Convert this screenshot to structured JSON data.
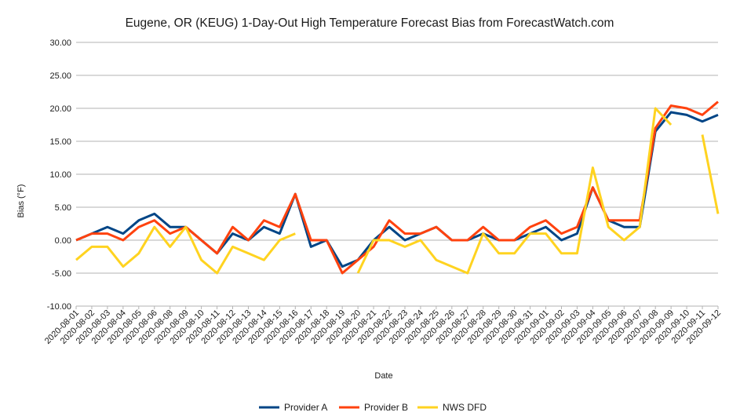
{
  "chart_data": {
    "type": "line",
    "title": "Eugene, OR (KEUG) 1-Day-Out High Temperature Forecast Bias from ForecastWatch.com",
    "xlabel": "Date",
    "ylabel": "Bias (°F)",
    "ylim": [
      -10,
      30
    ],
    "ytick_step": 5,
    "ytick_labels": [
      "-10.00",
      "-5.00",
      "0.00",
      "5.00",
      "10.00",
      "15.00",
      "20.00",
      "25.00",
      "30.00"
    ],
    "grid": true,
    "legend_position": "bottom-center",
    "categories": [
      "2020-08-01",
      "2020-08-02",
      "2020-08-03",
      "2020-08-04",
      "2020-08-05",
      "2020-08-06",
      "2020-08-08",
      "2020-08-09",
      "2020-08-10",
      "2020-08-11",
      "2020-08-12",
      "2020-08-13",
      "2020-08-14",
      "2020-08-15",
      "2020-08-16",
      "2020-08-17",
      "2020-08-18",
      "2020-08-19",
      "2020-08-20",
      "2020-08-21",
      "2020-08-22",
      "2020-08-23",
      "2020-08-24",
      "2020-08-25",
      "2020-08-26",
      "2020-08-27",
      "2020-08-28",
      "2020-08-29",
      "2020-08-30",
      "2020-08-31",
      "2020-09-01",
      "2020-09-02",
      "2020-09-03",
      "2020-09-04",
      "2020-09-05",
      "2020-09-06",
      "2020-09-07",
      "2020-09-08",
      "2020-09-09",
      "2020-09-10",
      "2020-09-11",
      "2020-09-12"
    ],
    "series": [
      {
        "name": "Provider A",
        "color": "#004586",
        "values": [
          0,
          1,
          2,
          1,
          3,
          4,
          2,
          2,
          0,
          -2,
          1,
          0,
          2,
          1,
          7,
          -1,
          0,
          -4,
          -3,
          0,
          2,
          0,
          1,
          2,
          0,
          0,
          1,
          0,
          0,
          1,
          2,
          0,
          1,
          8,
          3,
          2,
          2,
          16.5,
          19.4,
          19,
          18,
          19
        ]
      },
      {
        "name": "Provider B",
        "color": "#ff420e",
        "values": [
          0,
          1,
          1,
          0,
          2,
          3,
          1,
          2,
          0,
          -2,
          2,
          0,
          3,
          2,
          7,
          0,
          0,
          -5,
          -3,
          -1,
          3,
          1,
          1,
          2,
          0,
          0,
          2,
          0,
          0,
          2,
          3,
          1,
          2,
          8,
          3,
          3,
          3,
          17,
          20.4,
          20,
          19,
          21
        ]
      },
      {
        "name": "NWS DFD",
        "color": "#ffd320",
        "values": [
          -3,
          -1,
          -1,
          -4,
          -2,
          2,
          -1,
          2,
          -3,
          -5,
          -1,
          -2,
          -3,
          0,
          1,
          null,
          null,
          null,
          -5,
          0,
          0,
          -1,
          0,
          -3,
          -4,
          -5,
          1,
          -2,
          -2,
          1,
          1,
          -2,
          -2,
          11,
          2,
          0,
          2,
          20,
          17.5,
          null,
          16,
          4
        ]
      }
    ]
  }
}
